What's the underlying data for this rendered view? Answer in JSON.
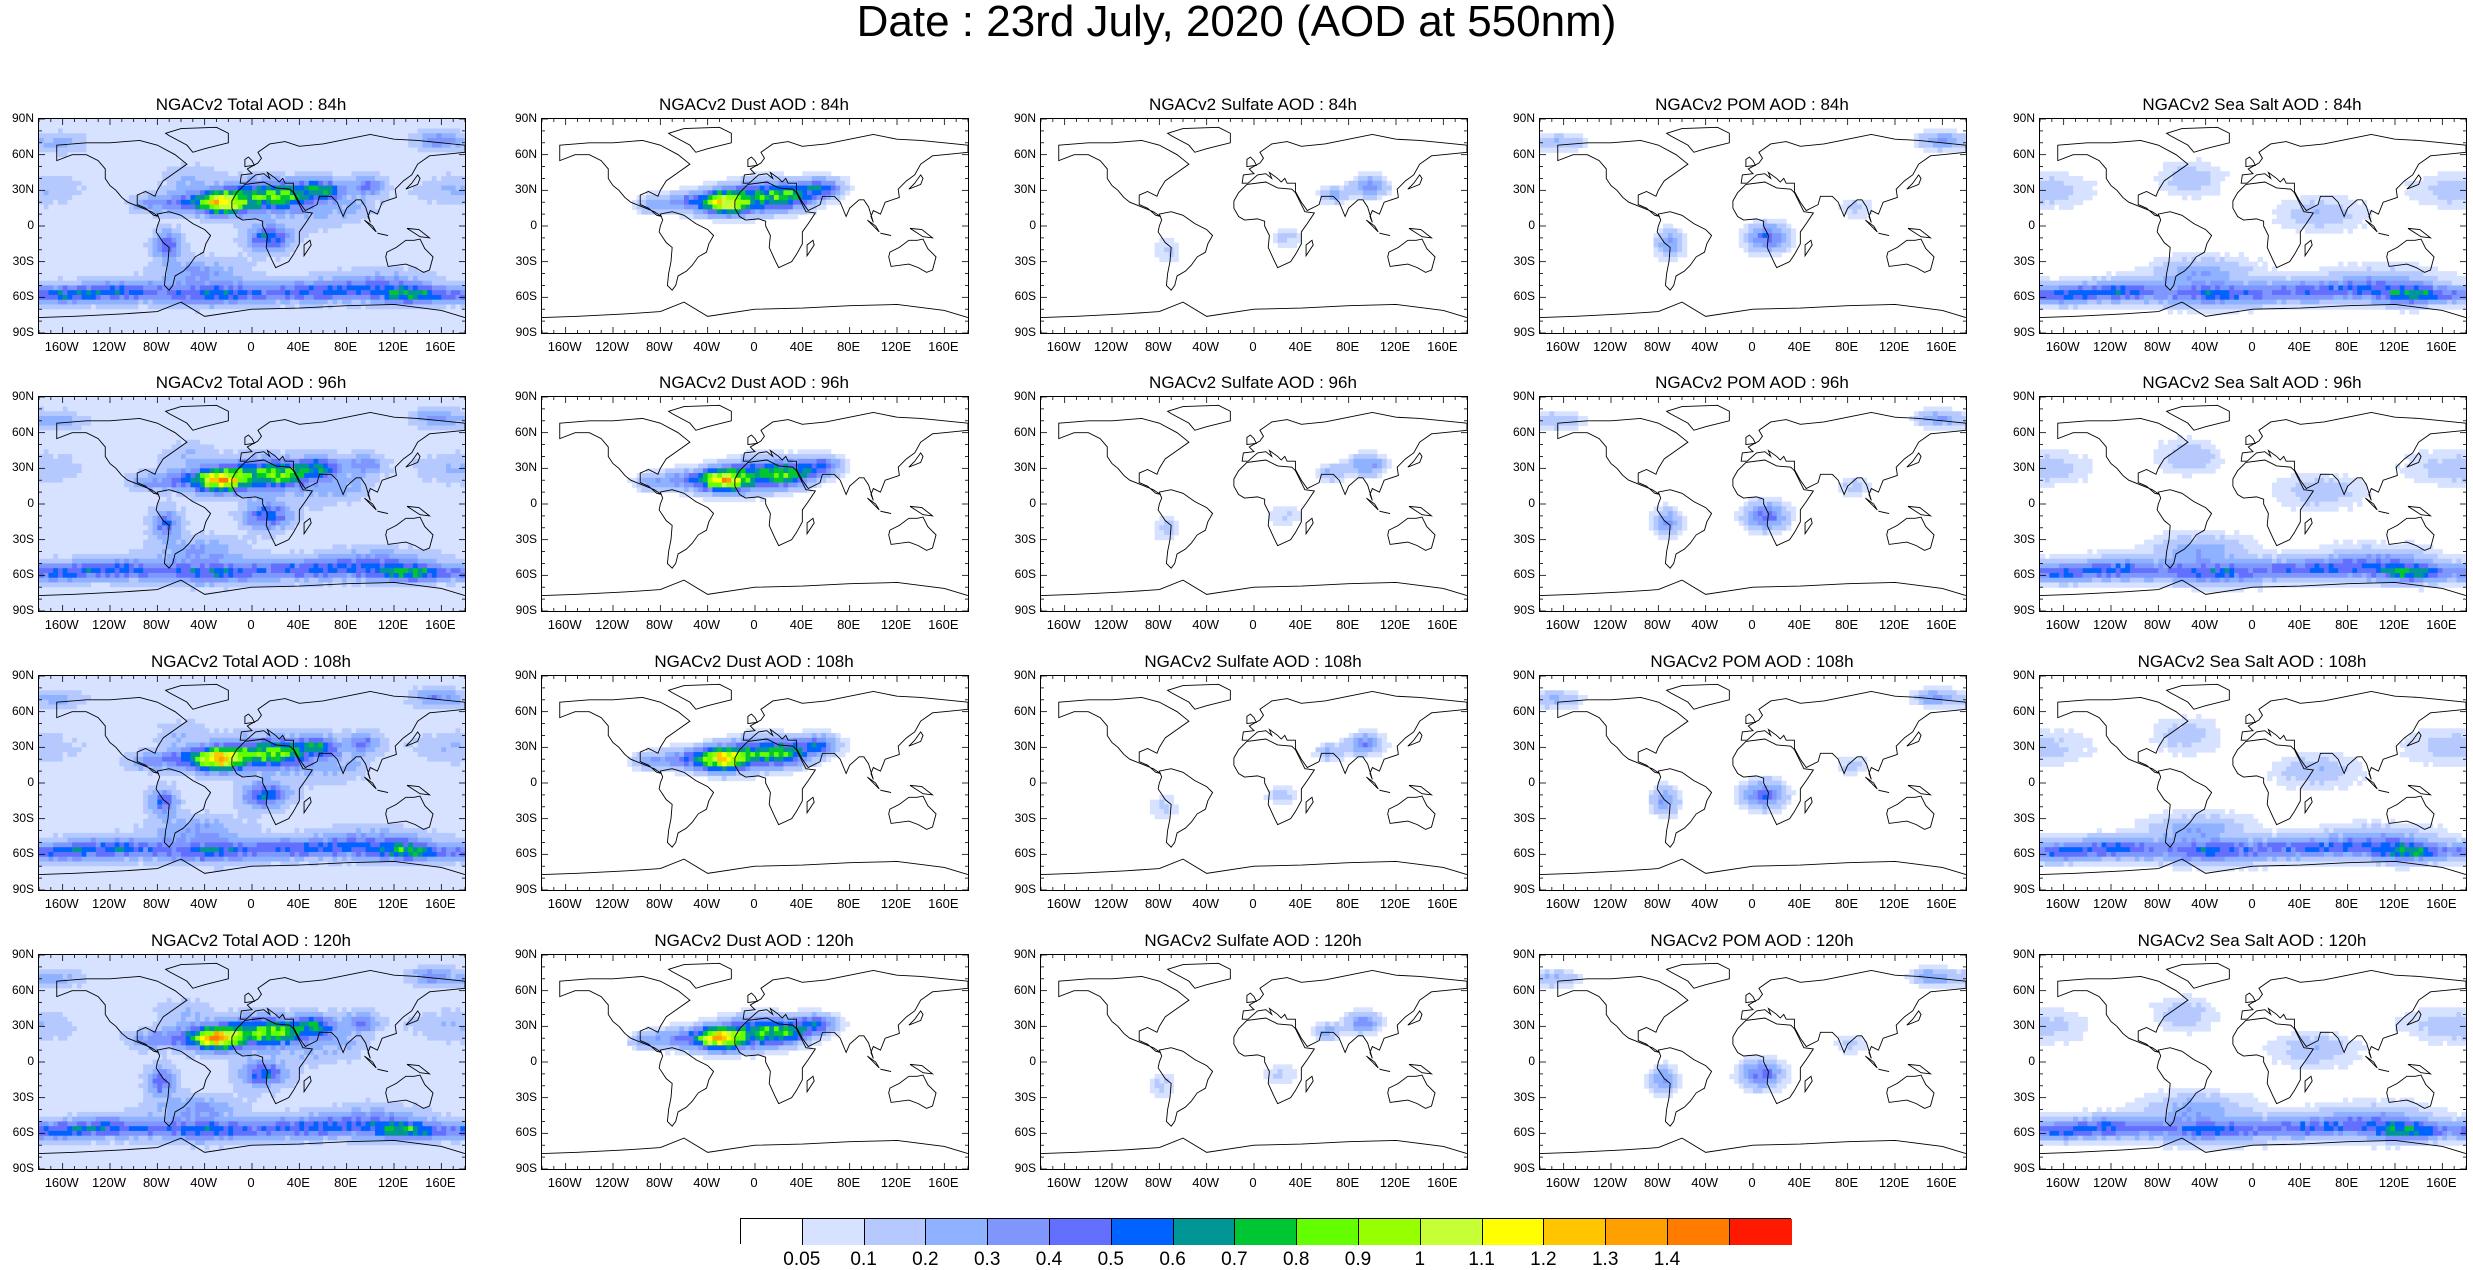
{
  "title": "Date : 23rd July, 2020 (AOD at 550nm)",
  "panels": [
    {
      "title": "NGACv2 Total AOD : 84h",
      "field": "total",
      "lead": 84
    },
    {
      "title": "NGACv2 Dust AOD : 84h",
      "field": "dust",
      "lead": 84
    },
    {
      "title": "NGACv2 Sulfate AOD : 84h",
      "field": "sulfate",
      "lead": 84
    },
    {
      "title": "NGACv2 POM AOD : 84h",
      "field": "pom",
      "lead": 84
    },
    {
      "title": "NGACv2 Sea Salt AOD : 84h",
      "field": "seasalt",
      "lead": 84
    },
    {
      "title": "NGACv2 Total AOD : 96h",
      "field": "total",
      "lead": 96
    },
    {
      "title": "NGACv2 Dust AOD : 96h",
      "field": "dust",
      "lead": 96
    },
    {
      "title": "NGACv2 Sulfate AOD : 96h",
      "field": "sulfate",
      "lead": 96
    },
    {
      "title": "NGACv2 POM AOD : 96h",
      "field": "pom",
      "lead": 96
    },
    {
      "title": "NGACv2 Sea Salt AOD : 96h",
      "field": "seasalt",
      "lead": 96
    },
    {
      "title": "NGACv2 Total AOD : 108h",
      "field": "total",
      "lead": 108
    },
    {
      "title": "NGACv2 Dust AOD : 108h",
      "field": "dust",
      "lead": 108
    },
    {
      "title": "NGACv2 Sulfate AOD : 108h",
      "field": "sulfate",
      "lead": 108
    },
    {
      "title": "NGACv2 POM AOD : 108h",
      "field": "pom",
      "lead": 108
    },
    {
      "title": "NGACv2 Sea Salt AOD : 108h",
      "field": "seasalt",
      "lead": 108
    },
    {
      "title": "NGACv2 Total AOD : 120h",
      "field": "total",
      "lead": 120
    },
    {
      "title": "NGACv2 Dust AOD : 120h",
      "field": "dust",
      "lead": 120
    },
    {
      "title": "NGACv2 Sulfate AOD : 120h",
      "field": "sulfate",
      "lead": 120
    },
    {
      "title": "NGACv2 POM AOD : 120h",
      "field": "pom",
      "lead": 120
    },
    {
      "title": "NGACv2 Sea Salt  AOD : 120h",
      "field": "seasalt",
      "lead": 120
    }
  ],
  "lat_labels": [
    "90N",
    "60N",
    "30N",
    "0",
    "30S",
    "60S",
    "90S"
  ],
  "lon_labels": [
    "160W",
    "120W",
    "80W",
    "40W",
    "0",
    "40E",
    "80E",
    "120E",
    "160E"
  ],
  "colorbar": {
    "labels": [
      "0.05",
      "0.1",
      "0.2",
      "0.3",
      "0.4",
      "0.5",
      "0.6",
      "0.7",
      "0.8",
      "0.9",
      "1",
      "1.1",
      "1.2",
      "1.3",
      "1.4"
    ],
    "colors": [
      "#ffffff",
      "#d6e2ff",
      "#b5c9ff",
      "#8eb2ff",
      "#7f96ff",
      "#6370ff",
      "#0063ff",
      "#009696",
      "#00c633",
      "#63ff00",
      "#96ff00",
      "#c6ff33",
      "#ffff00",
      "#ffc600",
      "#ffa000",
      "#ff7c00",
      "#ff1900"
    ]
  }
}
